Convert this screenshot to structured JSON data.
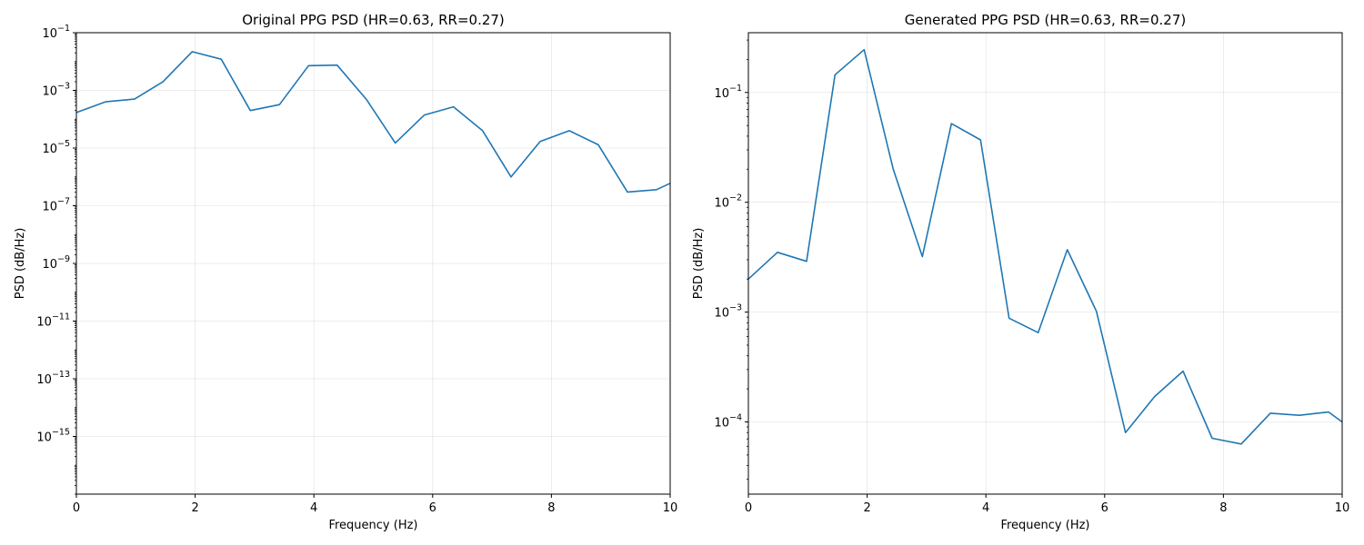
{
  "chart_data": [
    {
      "type": "line",
      "title": "Original PPG PSD (HR=0.63, RR=0.27)",
      "xlabel": "Frequency (Hz)",
      "ylabel": "PSD (dB/Hz)",
      "xlim": [
        0,
        10
      ],
      "ylim_exponent": [
        -17,
        -1
      ],
      "yscale": "log",
      "grid": true,
      "x_ticks": [
        "0",
        "2",
        "4",
        "6",
        "8",
        "10"
      ],
      "y_ticks": [
        "10^-1",
        "10^-3",
        "10^-5",
        "10^-7",
        "10^-9",
        "10^-11",
        "10^-13",
        "10^-15"
      ],
      "series": [
        {
          "x": [
            0,
            0.49,
            0.98,
            1.46,
            1.95,
            2.44,
            2.93,
            3.42,
            3.91,
            4.39,
            4.88,
            5.37,
            5.86,
            6.35,
            6.84,
            7.32,
            7.81,
            8.3,
            8.79,
            9.28,
            9.77,
            10.0
          ],
          "y": [
            0.00017,
            0.0004,
            0.0005,
            0.002,
            0.022,
            0.012,
            0.0002,
            0.00032,
            0.0072,
            0.0075,
            0.0005,
            1.5e-05,
            0.00014,
            0.00027,
            4e-05,
            1e-06,
            1.7e-05,
            4e-05,
            1.3e-05,
            3e-07,
            3.6e-07,
            6e-07
          ]
        }
      ]
    },
    {
      "type": "line",
      "title": "Generated PPG PSD (HR=0.63, RR=0.27)",
      "xlabel": "Frequency (Hz)",
      "ylabel": "PSD (dB/Hz)",
      "xlim": [
        0,
        10
      ],
      "ylim": [
        2.2e-05,
        0.35
      ],
      "yscale": "log",
      "grid": true,
      "x_ticks": [
        "0",
        "2",
        "4",
        "6",
        "8",
        "10"
      ],
      "y_ticks": [
        "10^-1",
        "10^-2",
        "10^-3",
        "10^-4"
      ],
      "series": [
        {
          "x": [
            0,
            0.49,
            0.98,
            1.46,
            1.95,
            2.44,
            2.93,
            3.42,
            3.91,
            4.39,
            4.88,
            5.37,
            5.86,
            6.35,
            6.84,
            7.32,
            7.81,
            8.3,
            8.79,
            9.28,
            9.77,
            10.0
          ],
          "y": [
            0.002,
            0.0035,
            0.0029,
            0.145,
            0.245,
            0.02,
            0.0032,
            0.052,
            0.037,
            0.00088,
            0.00065,
            0.0037,
            0.00102,
            8e-05,
            0.00017,
            0.00029,
            7.1e-05,
            6.3e-05,
            0.00012,
            0.000115,
            0.000123,
            0.0001
          ]
        }
      ]
    }
  ]
}
